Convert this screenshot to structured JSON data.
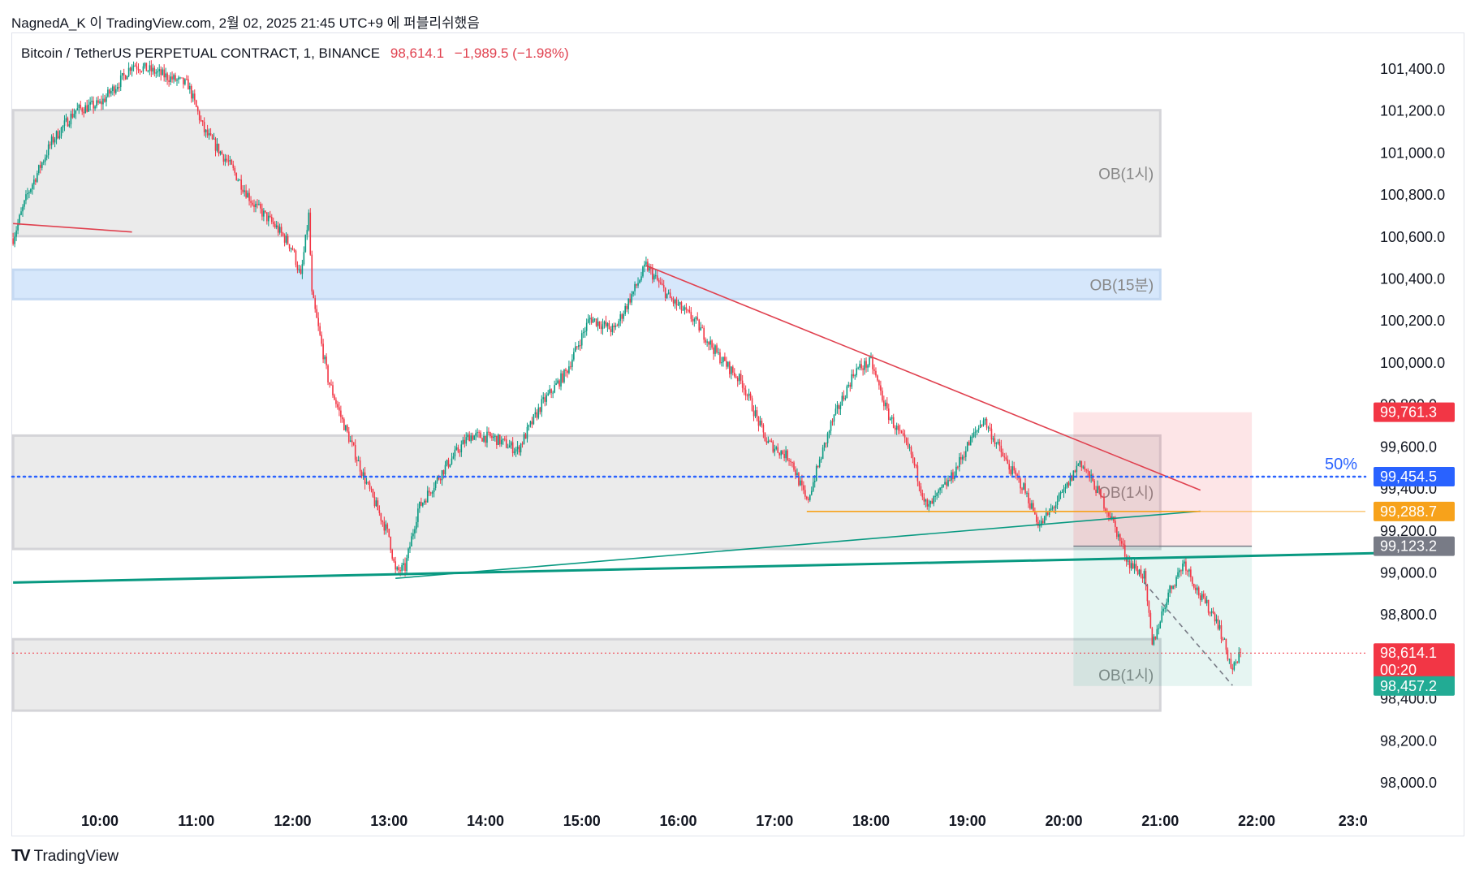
{
  "header": {
    "publish_line": "NagnedA_K 이 TradingView.com, 2월 02, 2025 21:45 UTC+9 에 퍼블리쉬했음",
    "symbol": "Bitcoin / TetherUS PERPETUAL CONTRACT, 1, BINANCE",
    "last_price": "98,614.1",
    "change": "−1,989.5 (−1.98%)"
  },
  "footer": {
    "logo": "TV",
    "brand": "TradingView"
  },
  "colors": {
    "up": "#089981",
    "down": "#f23645",
    "ob_gray": "#ebebeb",
    "ob_blue": "#d6e7fb",
    "trend_red": "#e0414f",
    "trend_green": "#089981",
    "fib_blue": "#2962ff",
    "orange": "#f7a21b"
  },
  "chart_data": {
    "type": "candlestick",
    "interval": "1",
    "exchange": "BINANCE",
    "x_axis": {
      "unit": "time",
      "ticks": [
        "10:00",
        "11:00",
        "12:00",
        "13:00",
        "14:00",
        "15:00",
        "16:00",
        "17:00",
        "18:00",
        "19:00",
        "20:00",
        "21:00",
        "22:00",
        "23:0"
      ],
      "range": [
        "09:06",
        "23:13"
      ]
    },
    "y_axis": {
      "unit": "USDT",
      "ticks": [
        "101,400.0",
        "101,200.0",
        "101,000.0",
        "100,800.0",
        "100,600.0",
        "100,400.0",
        "100,200.0",
        "100,000.0",
        "99,800.0",
        "99,600.0",
        "99,400.0",
        "99,200.0",
        "99,000.0",
        "98,800.0",
        "98,600.0",
        "98,400.0",
        "98,200.0",
        "98,000.0"
      ],
      "ylim": [
        97,
        900,
        101,
        520
      ]
    },
    "series": {
      "close_path": [
        [
          "09:06",
          100590
        ],
        [
          "09:15",
          100800
        ],
        [
          "09:30",
          101050
        ],
        [
          "09:45",
          101200
        ],
        [
          "10:00",
          101230
        ],
        [
          "10:15",
          101360
        ],
        [
          "10:20",
          101420
        ],
        [
          "10:35",
          101380
        ],
        [
          "10:55",
          101320
        ],
        [
          "11:05",
          101100
        ],
        [
          "11:20",
          100950
        ],
        [
          "11:35",
          100760
        ],
        [
          "11:50",
          100640
        ],
        [
          "12:00",
          100540
        ],
        [
          "12:05",
          100400
        ],
        [
          "12:10",
          100700
        ],
        [
          "12:12",
          100320
        ],
        [
          "12:22",
          99920
        ],
        [
          "12:30",
          99740
        ],
        [
          "12:45",
          99440
        ],
        [
          "13:00",
          99170
        ],
        [
          "13:04",
          99000
        ],
        [
          "13:10",
          99020
        ],
        [
          "13:18",
          99300
        ],
        [
          "13:35",
          99500
        ],
        [
          "13:50",
          99650
        ],
        [
          "14:05",
          99640
        ],
        [
          "14:20",
          99580
        ],
        [
          "14:35",
          99800
        ],
        [
          "14:50",
          99950
        ],
        [
          "15:05",
          100210
        ],
        [
          "15:20",
          100150
        ],
        [
          "15:35",
          100380
        ],
        [
          "15:40",
          100460
        ],
        [
          "15:55",
          100300
        ],
        [
          "16:10",
          100200
        ],
        [
          "16:25",
          100030
        ],
        [
          "16:40",
          99900
        ],
        [
          "16:55",
          99620
        ],
        [
          "17:10",
          99540
        ],
        [
          "17:20",
          99330
        ],
        [
          "17:35",
          99700
        ],
        [
          "17:50",
          99960
        ],
        [
          "18:00",
          100000
        ],
        [
          "18:10",
          99760
        ],
        [
          "18:25",
          99560
        ],
        [
          "18:35",
          99300
        ],
        [
          "18:50",
          99450
        ],
        [
          "19:00",
          99600
        ],
        [
          "19:10",
          99730
        ],
        [
          "19:25",
          99510
        ],
        [
          "19:35",
          99400
        ],
        [
          "19:45",
          99220
        ],
        [
          "20:00",
          99380
        ],
        [
          "20:10",
          99530
        ],
        [
          "20:20",
          99400
        ],
        [
          "20:30",
          99250
        ],
        [
          "20:40",
          99050
        ],
        [
          "20:50",
          98980
        ],
        [
          "20:55",
          98650
        ],
        [
          "21:05",
          98900
        ],
        [
          "21:15",
          99050
        ],
        [
          "21:25",
          98880
        ],
        [
          "21:35",
          98780
        ],
        [
          "21:45",
          98530
        ],
        [
          "21:50",
          98614.1
        ]
      ],
      "last_price": 98614.1,
      "countdown": "00:20"
    },
    "zones": [
      {
        "label": "OB(1시)",
        "type": "order-block",
        "y_top": 101200,
        "y_bottom": 100600,
        "x_start": "09:06",
        "x_end": "21:00"
      },
      {
        "label": "OB(15분)",
        "type": "order-block",
        "y_top": 100440,
        "y_bottom": 100300,
        "x_start": "09:06",
        "x_end": "21:00"
      },
      {
        "label": "OB(1시)",
        "type": "order-block",
        "y_top": 99650,
        "y_bottom": 99110,
        "x_start": "09:06",
        "x_end": "21:00"
      },
      {
        "label": "OB(1시)",
        "type": "order-block",
        "y_top": 98680,
        "y_bottom": 98340,
        "x_start": "09:06",
        "x_end": "21:00"
      },
      {
        "label": "",
        "type": "short-position-risk",
        "y_top": 99761.3,
        "y_bottom": 99123.2,
        "x_start": "20:06",
        "x_end": "21:57"
      },
      {
        "label": "",
        "type": "short-position-target",
        "y_top": 99123.2,
        "y_bottom": 98457.2,
        "x_start": "20:06",
        "x_end": "21:57"
      }
    ],
    "lines": [
      {
        "type": "trendline",
        "color": "red",
        "from": [
          "09:06",
          100660
        ],
        "to": [
          "10:20",
          100620
        ]
      },
      {
        "type": "trendline",
        "color": "red",
        "from": [
          "15:40",
          100460
        ],
        "to": [
          "21:25",
          99390
        ]
      },
      {
        "type": "trendline",
        "color": "green",
        "from": [
          "09:06",
          98950
        ],
        "to": [
          "23:13",
          99090
        ]
      },
      {
        "type": "trendline",
        "color": "green",
        "from": [
          "13:04",
          98970
        ],
        "to": [
          "21:25",
          99290
        ]
      },
      {
        "type": "horizontal",
        "color": "orange",
        "y": 99288.7,
        "from": "17:20",
        "to": "21:25"
      },
      {
        "type": "horizontal-dotted",
        "color": "blue",
        "y": 99454.5,
        "label": "50%"
      },
      {
        "type": "dashed",
        "color": "gray",
        "from": [
          "20:50",
          98950
        ],
        "to": [
          "21:45",
          98460
        ]
      }
    ],
    "price_labels": [
      {
        "value": "99,761.3",
        "color": "#f23645"
      },
      {
        "value": "99,454.5",
        "color": "#2962ff"
      },
      {
        "value": "99,288.7",
        "color": "#f7a21b"
      },
      {
        "value": "99,123.2",
        "color": "#787b86"
      },
      {
        "value": "98,614.1",
        "sub": "00:20",
        "color": "#f23645"
      },
      {
        "value": "98,457.2",
        "color": "#22ab94"
      }
    ]
  }
}
